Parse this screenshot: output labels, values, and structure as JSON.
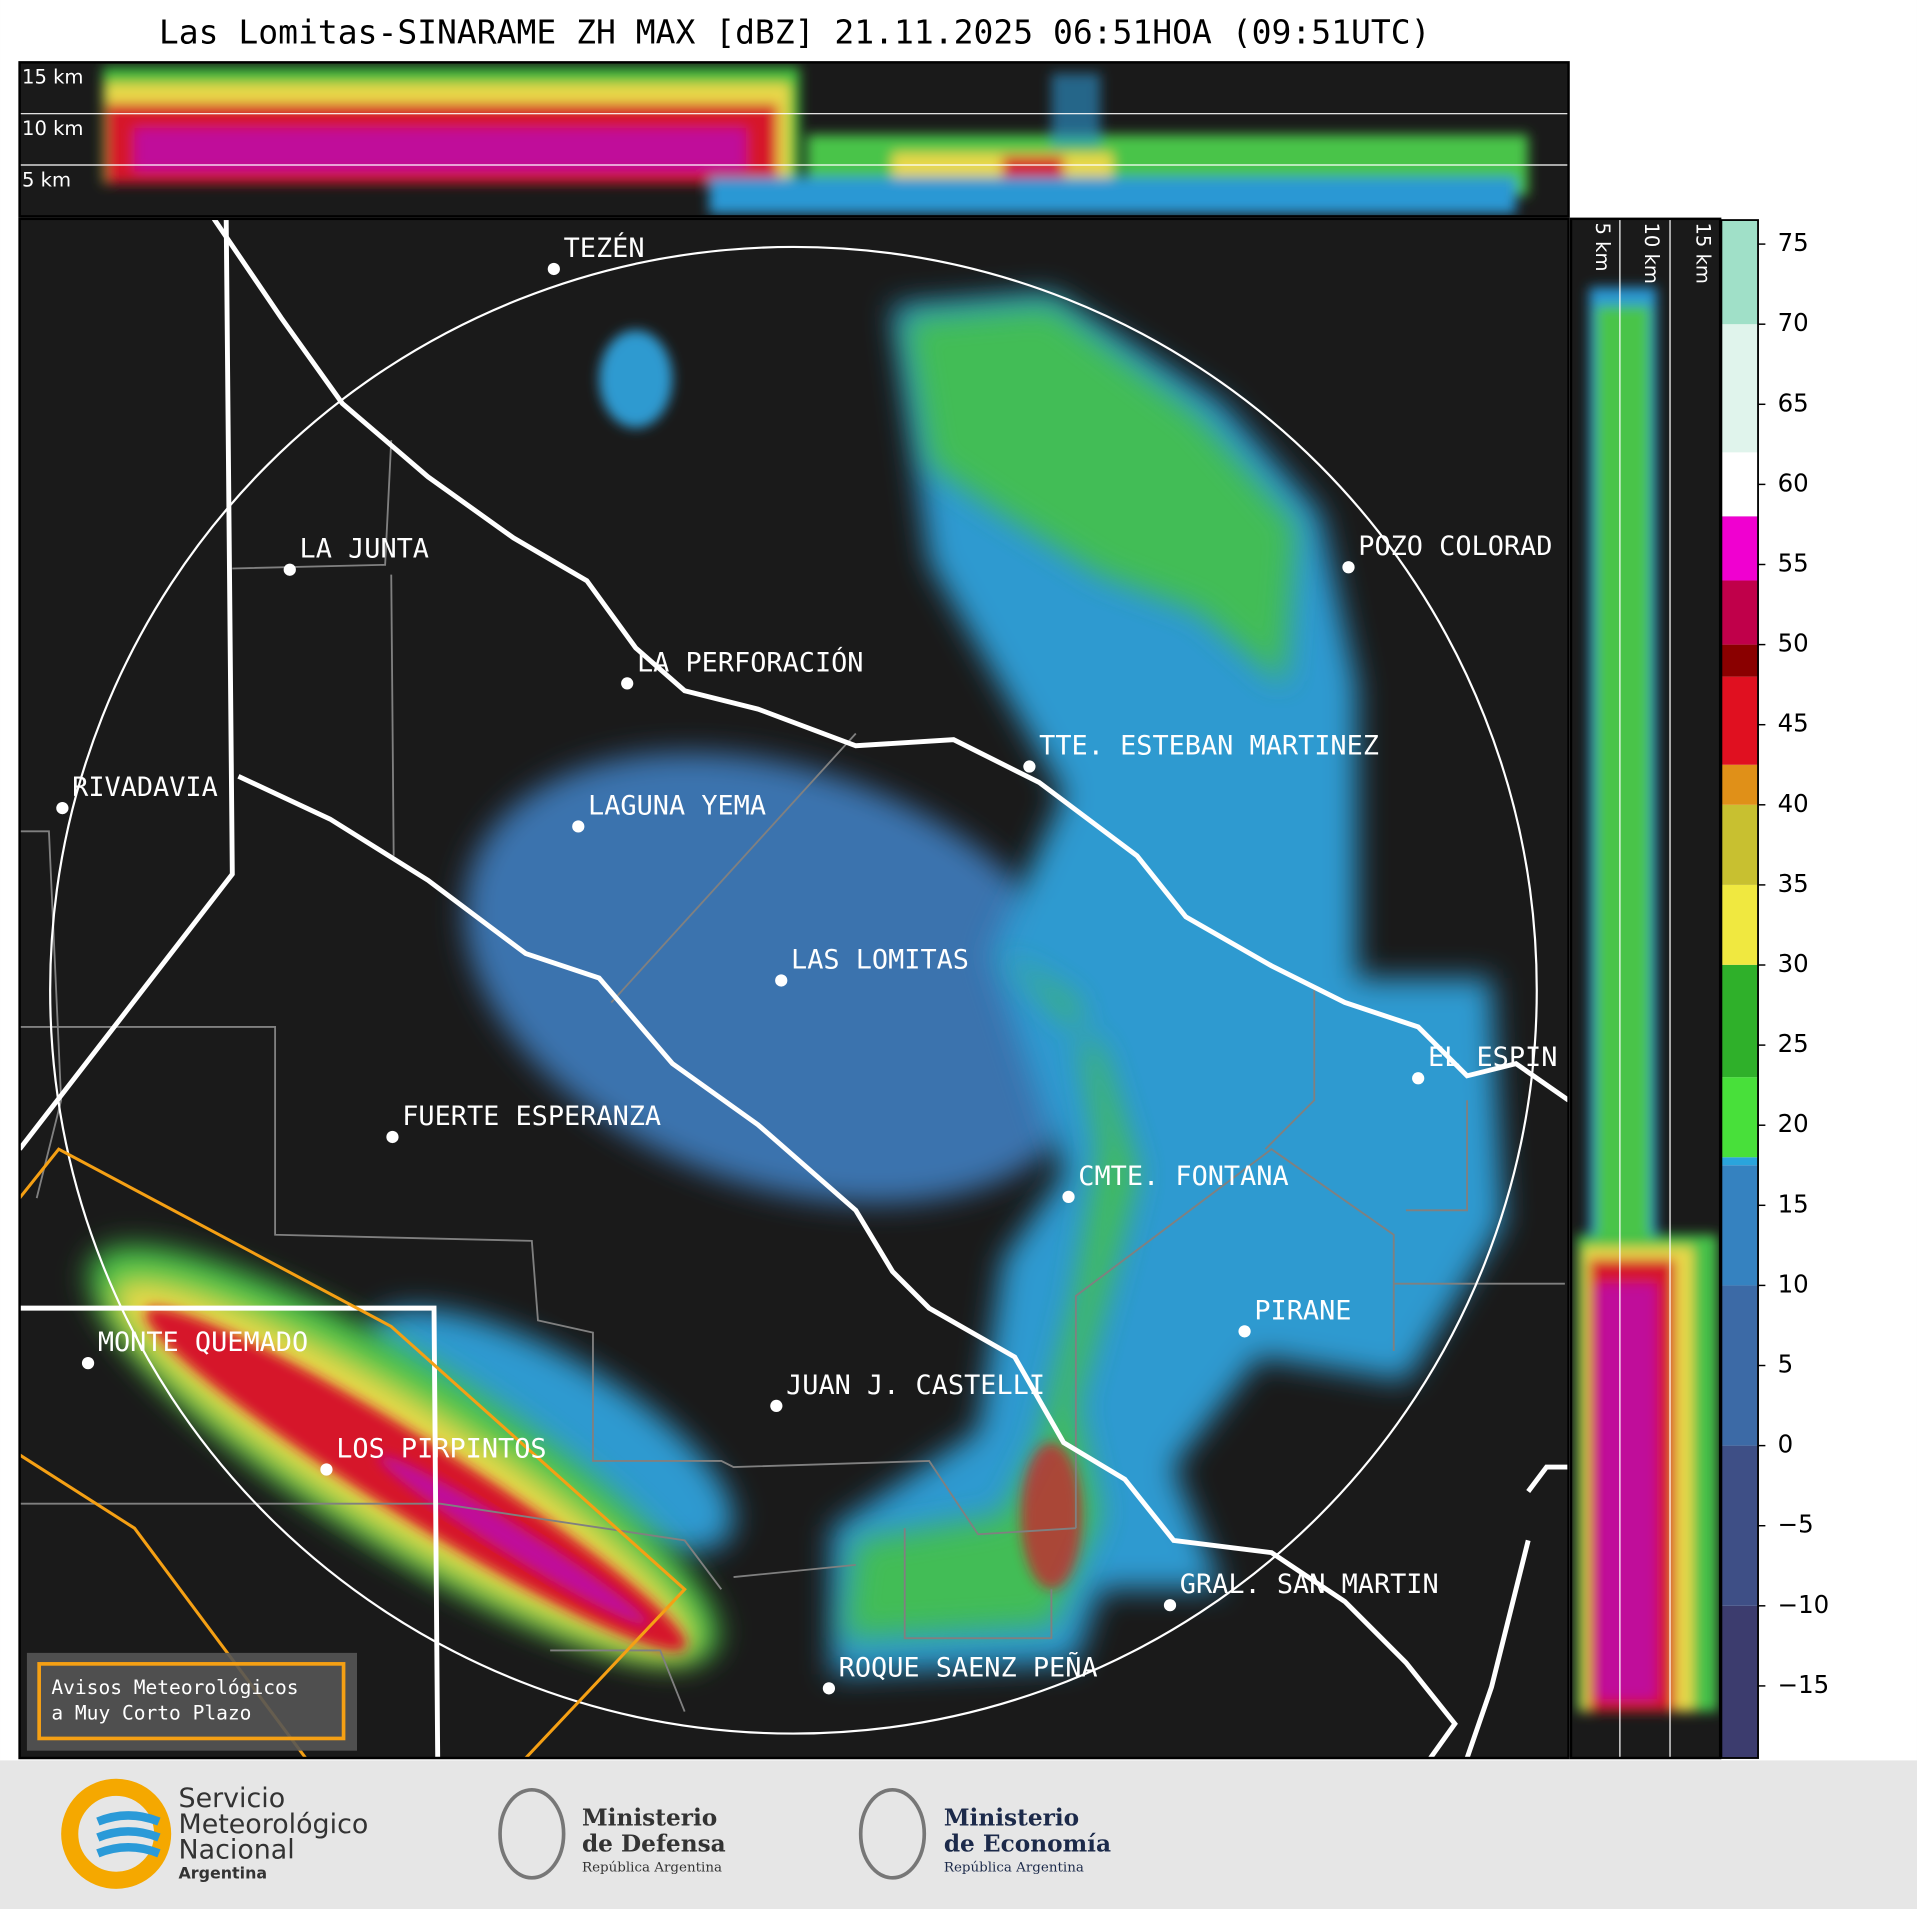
{
  "title": "Las Lomitas-SINARAME ZH MAX [dBZ] 21.11.2025 06:51HOA (09:51UTC)",
  "top_panel": {
    "height_labels": [
      "15 km",
      "10 km",
      "5 km"
    ]
  },
  "side_panel": {
    "height_labels": [
      "5 km",
      "10 km",
      "15 km"
    ]
  },
  "places": [
    "TEZÉN",
    "LA JUNTA",
    "LA PERFORACIÓN",
    "POZO COLORAD",
    "TTE. ESTEBAN MARTINEZ",
    "RIVADAVIA",
    "LAGUNA YEMA",
    "LAS LOMITAS",
    "EL ESPIN",
    "FUERTE ESPERANZA",
    "CMTE. FONTANA",
    "PIRANE",
    "MONTE QUEMADO",
    "JUAN J. CASTELLI",
    "LOS PIRPINTOS",
    "GRAL. SAN MARTIN",
    "ROQUE SAENZ PEÑA"
  ],
  "colorbar": {
    "clim": [
      -19.5,
      76.5
    ],
    "ticks": [
      {
        "value": -15,
        "label": "−15"
      },
      {
        "value": -10,
        "label": "−10"
      },
      {
        "value": -5,
        "label": "−5"
      },
      0,
      5,
      10,
      15,
      20,
      25,
      30,
      35,
      40,
      45,
      50,
      55,
      60,
      65,
      70,
      75
    ]
  },
  "notice": {
    "lines": [
      "Avisos Meteorológicos",
      "a Muy Corto Plazo"
    ]
  },
  "logos": [
    {
      "lines": [
        "Servicio",
        "Meteorológico",
        "Nacional",
        "Argentina"
      ]
    },
    {
      "lines": [
        "Ministerio",
        "de Defensa",
        "República Argentina"
      ]
    },
    {
      "lines": [
        "Ministerio",
        "de Economía",
        "República Argentina"
      ]
    }
  ]
}
